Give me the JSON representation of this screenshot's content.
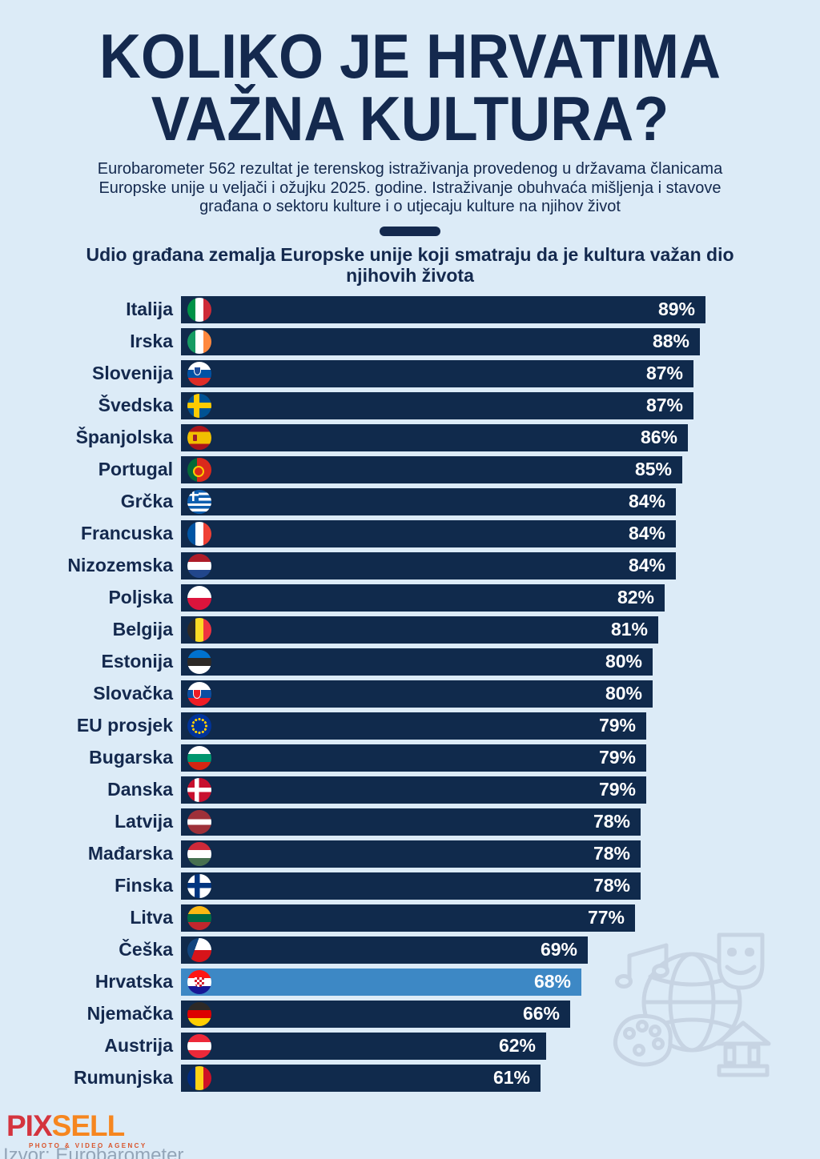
{
  "page": {
    "background_color": "#dcebf7",
    "navy_color": "#102a4c",
    "highlight_color": "#3d88c5"
  },
  "header": {
    "title_line1": "KOLIKO JE HRVATIMA",
    "title_line2": "VAŽNA KULTURA?",
    "subtitle": "Eurobarometer 562 rezultat je terenskog istraživanja provedenog u državama članicama Europske unije u veljači i ožujku 2025. godine. Istraživanje obuhvaća mišljenja i stavove građana o sektoru kulture i o utjecaju kulture na njihov život"
  },
  "chart_data": {
    "type": "bar",
    "orientation": "horizontal",
    "title": "Udio građana zemalja Europske unije koji smatraju da je kultura važan dio njihovih života",
    "unit": "%",
    "xlim": [
      0,
      100
    ],
    "grid": false,
    "bar_color": "#102a4c",
    "highlight_color": "#3d88c5",
    "value_label_position": "inside-end",
    "rows": [
      {
        "label": "Italija",
        "value": 89,
        "flag": "it",
        "highlight": false
      },
      {
        "label": "Irska",
        "value": 88,
        "flag": "ie",
        "highlight": false
      },
      {
        "label": "Slovenija",
        "value": 87,
        "flag": "si",
        "highlight": false
      },
      {
        "label": "Švedska",
        "value": 87,
        "flag": "se",
        "highlight": false
      },
      {
        "label": "Španjolska",
        "value": 86,
        "flag": "es",
        "highlight": false
      },
      {
        "label": "Portugal",
        "value": 85,
        "flag": "pt",
        "highlight": false
      },
      {
        "label": "Grčka",
        "value": 84,
        "flag": "gr",
        "highlight": false
      },
      {
        "label": "Francuska",
        "value": 84,
        "flag": "fr",
        "highlight": false
      },
      {
        "label": "Nizozemska",
        "value": 84,
        "flag": "nl",
        "highlight": false
      },
      {
        "label": "Poljska",
        "value": 82,
        "flag": "pl",
        "highlight": false
      },
      {
        "label": "Belgija",
        "value": 81,
        "flag": "be",
        "highlight": false
      },
      {
        "label": "Estonija",
        "value": 80,
        "flag": "ee",
        "highlight": false
      },
      {
        "label": "Slovačka",
        "value": 80,
        "flag": "sk",
        "highlight": false
      },
      {
        "label": "EU prosjek",
        "value": 79,
        "flag": "eu",
        "highlight": false
      },
      {
        "label": "Bugarska",
        "value": 79,
        "flag": "bg",
        "highlight": false
      },
      {
        "label": "Danska",
        "value": 79,
        "flag": "dk",
        "highlight": false
      },
      {
        "label": "Latvija",
        "value": 78,
        "flag": "lv",
        "highlight": false
      },
      {
        "label": "Mađarska",
        "value": 78,
        "flag": "hu",
        "highlight": false
      },
      {
        "label": "Finska",
        "value": 78,
        "flag": "fi",
        "highlight": false
      },
      {
        "label": "Litva",
        "value": 77,
        "flag": "lt",
        "highlight": false
      },
      {
        "label": "Češka",
        "value": 69,
        "flag": "cz",
        "highlight": false
      },
      {
        "label": "Hrvatska",
        "value": 68,
        "flag": "hr",
        "highlight": true
      },
      {
        "label": "Njemačka",
        "value": 66,
        "flag": "de",
        "highlight": false
      },
      {
        "label": "Austrija",
        "value": 62,
        "flag": "at",
        "highlight": false
      },
      {
        "label": "Rumunjska",
        "value": 61,
        "flag": "ro",
        "highlight": false
      }
    ]
  },
  "decor": {
    "icons": [
      "music-note-icon",
      "globe-icon",
      "theater-mask-icon",
      "paint-palette-icon",
      "museum-building-icon"
    ],
    "line_color": "#c7d4e3"
  },
  "footer": {
    "logo_pix": "PIX",
    "logo_sell": "SELL",
    "logo_tagline": "PHOTO & VIDEO AGENCY",
    "source": "Izvor: Eurobarometer"
  }
}
